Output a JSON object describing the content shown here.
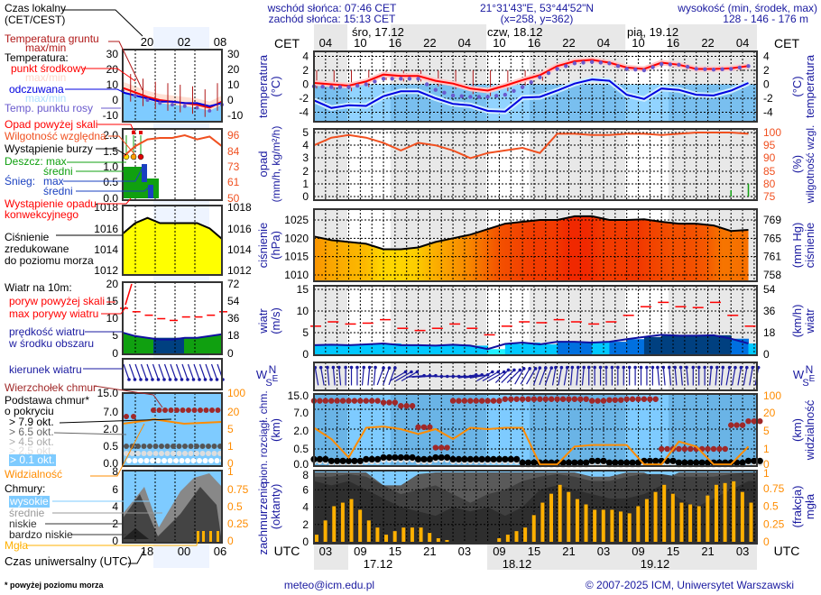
{
  "header": {
    "sunrise": "wschód słońca: 07:46 CET",
    "sunset": "zachód słońca: 15:13 CET",
    "coords": "21°31'43\"E, 53°44'52\"N",
    "grid": "(x=258,  y=362)",
    "elevation_title": "wysokość (min, środek, max)",
    "elevation_values": "128 - 146 - 176 m"
  },
  "footer": {
    "email": "meteo@icm.edu.pl",
    "copyright": "© 2007-2025 ICM, Uniwersytet Warszawski",
    "note": "* powyżej poziomu morza"
  },
  "legend": {
    "local_time": "Czas lokalny",
    "local_time_zone": "(CET/CEST)",
    "ground_temp": "Temperatura gruntu",
    "ground_temp_mm": "max/min",
    "temperature": "Temperatura:",
    "temp_mid": "punkt środkowy",
    "temp_mid_mm": "max/min",
    "feels": "odczuwana",
    "feels_mm": "max/min",
    "dew": "Temp. punktu rosy",
    "precip_over": "Opad powyżej skali",
    "humidity": "Wilgotność względna",
    "storm": "Wystąpienie burzy",
    "rain": "Deszcz: max",
    "rain_avg": "średni",
    "snow": "Śnieg:",
    "snow_max": "max",
    "snow_avg": "średni",
    "convective": "Wystąpienie opadu",
    "convective2": "konwekcyjnego",
    "pressure1": "Ciśnienie",
    "pressure2": "zredukowane",
    "pressure3": "do poziomu morza",
    "wind10": "Wiatr na 10m:",
    "gust_over": "poryw powyżej skali",
    "gust_max": "max porywy wiatru",
    "wind_speed1": "prędkość wiatru",
    "wind_speed2": "w środku obszaru",
    "wind_dir": "kierunek wiatru",
    "cloud_top": "Wierzchołek chmur",
    "cloud_base1": "Podstawa chmur*",
    "cloud_base2": "o pokryciu",
    "okt79": "> 7.9 okt.",
    "okt65": "> 6.5 okt.",
    "okt45": "> 4.5 okt.",
    "okt25": "> 2.5 okt.",
    "okt01": "> 0.1 okt.",
    "visibility": "Widzialność",
    "clouds": "Chmury:",
    "high": "wysokie",
    "medium": "średnie",
    "low": "niskie",
    "very_low": "bardzo niskie",
    "fog": "Mgła",
    "utc": "Czas uniwersalny (UTC)",
    "mini_top_ticks": [
      "20",
      "02",
      "08"
    ],
    "mini_bottom_ticks": [
      "18",
      "00",
      "06"
    ],
    "mini_series": {
      "temp": [
        8,
        5,
        2,
        0,
        -1,
        -2,
        -3,
        -5,
        -1
      ],
      "feels": [
        5,
        3,
        1,
        -1,
        -1,
        -2,
        -2,
        -4,
        -2
      ],
      "humidity": [
        80,
        88,
        93,
        94,
        94,
        96,
        93,
        95,
        88
      ],
      "pressure": [
        1015.5,
        1016.5,
        1017,
        1016.5,
        1016.5,
        1016.5,
        1016.5,
        1016,
        1015
      ],
      "wind": [
        6,
        5,
        4.5,
        4,
        4,
        4.5,
        4.5,
        5,
        5.5
      ],
      "gust": [
        13,
        12,
        11,
        10,
        9.5,
        10.5,
        10.5,
        11,
        12
      ]
    }
  },
  "axes": {
    "cet": "CET",
    "utc": "UTC",
    "days": [
      "śro, 17.12",
      "czw, 18.12",
      "pią, 19.12"
    ],
    "cet_ticks": [
      "04",
      "10",
      "16",
      "22",
      "04",
      "10",
      "16",
      "22",
      "04",
      "10",
      "16",
      "22",
      "04"
    ],
    "utc_ticks": [
      "03",
      "09",
      "15",
      "21",
      "03",
      "09",
      "15",
      "21",
      "03",
      "09",
      "15",
      "21",
      "03"
    ],
    "utc_dates": [
      "17.12",
      "18.12",
      "19.12"
    ],
    "compass": [
      "W",
      "S",
      "N",
      "E"
    ],
    "temperature": {
      "left": [
        "temperatura",
        "(°C)"
      ],
      "right": [
        "(°C)",
        "temperatura"
      ],
      "ticks": [
        "4",
        "2",
        "0",
        "-2",
        "-4"
      ],
      "mini_ticks": [
        "30",
        "20",
        "10",
        "0",
        "-10"
      ]
    },
    "precip": {
      "left": [
        "opad",
        "(mm/h, kg/m²/h)"
      ],
      "ticks": [
        "5",
        "4",
        "3",
        "2",
        "1",
        "0"
      ],
      "mini_ticks": [
        "2.0",
        "1.5",
        "1.0",
        "0.5",
        "0.0"
      ]
    },
    "humidity": {
      "right": [
        "(%)",
        "wilgotność wzgl."
      ],
      "ticks": [
        "100",
        "95",
        "90",
        "85",
        "80",
        "75"
      ],
      "mini_ticks": [
        "96",
        "84",
        "73",
        "61",
        "50"
      ]
    },
    "pressure": {
      "left": [
        "ciśnienie",
        "(hPa)"
      ],
      "right": [
        "(mm Hg)",
        "ciśnienie"
      ],
      "ticks": [
        "1025",
        "1020",
        "1015",
        "1010"
      ],
      "mmhg_ticks": [
        "769",
        "765",
        "761",
        "758"
      ],
      "mini_ticks": [
        "1018",
        "1016",
        "1014",
        "1012"
      ]
    },
    "wind": {
      "left": [
        "wiatr",
        "(m/s)"
      ],
      "right": [
        "(km/h)",
        "wiatr"
      ],
      "ticks": [
        "15",
        "10",
        "5",
        "0"
      ],
      "kmh_ticks": [
        "54",
        "36",
        "18",
        "0"
      ],
      "mini_ticks": [
        "20",
        "15",
        "10",
        "5",
        "0"
      ],
      "mini_kmh": [
        "72",
        "54",
        "36",
        "18",
        "0"
      ]
    },
    "cloud_extent": {
      "left": [
        "pion. rozciągł. chm.",
        "(km)"
      ],
      "ticks": [
        "15.0",
        "7.0",
        "2.0",
        "0.5",
        "0.0"
      ]
    },
    "visibility": {
      "right": [
        "(km)",
        "widzialność"
      ],
      "ticks": [
        "100",
        "20",
        "5",
        "1",
        "0"
      ]
    },
    "cloud_cover": {
      "left": [
        "zachmurzenie",
        "(oktanty)"
      ],
      "ticks": [
        "8",
        "6",
        "4",
        "2",
        "0"
      ]
    },
    "fog": {
      "right": [
        "(frakcja)",
        "mgła"
      ],
      "ticks": [
        "1",
        "0.75",
        "0.5",
        "0.25",
        "0"
      ]
    }
  },
  "colors": {
    "temperature": "#ff0000",
    "feels_like": "#0000e0",
    "dew_point": "#6a5acd",
    "humidity": "#f05020",
    "pressure_low": "#ffe000",
    "pressure_high": "#f02800",
    "gust": "#ff0000",
    "wind": "#00c8ff",
    "cloud_top": "#a02828",
    "visibility": "#ff8c00",
    "fog": "#ffb000",
    "axis_label": "#1a1aa0"
  },
  "chart_data": {
    "type": "line",
    "times_cet": [
      "17.12 02:00",
      "17.12 05:00",
      "17.12 08:00",
      "17.12 11:00",
      "17.12 14:00",
      "17.12 17:00",
      "17.12 20:00",
      "17.12 23:00",
      "18.12 02:00",
      "18.12 05:00",
      "18.12 08:00",
      "18.12 11:00",
      "18.12 14:00",
      "18.12 17:00",
      "18.12 20:00",
      "18.12 23:00",
      "19.12 02:00",
      "19.12 05:00",
      "19.12 08:00",
      "19.12 11:00",
      "19.12 14:00",
      "19.12 17:00",
      "19.12 20:00",
      "19.12 23:00",
      "20.12 02:00",
      "20.12 05:00"
    ],
    "temperature_c": [
      0.2,
      0,
      -0.2,
      0.4,
      1.4,
      1.2,
      1.2,
      0.5,
      0.1,
      -0.6,
      -0.9,
      -0.2,
      0.6,
      1.3,
      2.6,
      3.3,
      3.5,
      3.1,
      2.4,
      2.2,
      3.1,
      2.8,
      2.2,
      2.2,
      2.3,
      2.6
    ],
    "feels_like_c": [
      -2.3,
      -3.4,
      -3.0,
      -3.1,
      -1.7,
      -1.0,
      -1.0,
      -2.0,
      -2.8,
      -3.0,
      -3.8,
      -3.9,
      -1.9,
      -1.8,
      -0.9,
      0.1,
      0.7,
      0.5,
      -1.5,
      -2.1,
      -0.6,
      -0.8,
      -1.5,
      -1.6,
      -0.9,
      0.2
    ],
    "dew_point_c": [
      -0.3,
      -0.4,
      -0.4,
      0.0,
      0.8,
      0.8,
      0.8,
      -0.8,
      -1.6,
      -1.8,
      -1.8,
      -1.5,
      -0.4,
      1.0,
      2.2,
      3.0,
      3.2,
      3.0,
      2.2,
      2.0,
      2.9,
      2.8,
      2.2,
      2.1,
      2.2,
      2.6
    ],
    "humidity_pct": [
      95,
      98,
      99,
      98,
      96,
      93,
      96,
      95,
      93,
      90,
      92,
      93,
      94,
      92,
      99.5,
      99.5,
      99,
      99,
      99.5,
      99.5,
      99,
      99.5,
      100,
      100,
      100,
      99.5
    ],
    "precip_mm_h": [
      0,
      0,
      0,
      0,
      0,
      0,
      0,
      0,
      0,
      0,
      0,
      0,
      0,
      0,
      0,
      0,
      0,
      0,
      0,
      0,
      0,
      0,
      0,
      0,
      0.5,
      1.0
    ],
    "pressure_hpa": [
      1020.5,
      1019.5,
      1019,
      1018.5,
      1017,
      1017,
      1017.5,
      1019,
      1020,
      1021,
      1022.5,
      1024,
      1024.5,
      1025,
      1025,
      1026,
      1026,
      1025,
      1025,
      1025.2,
      1024.5,
      1024,
      1024,
      1023.5,
      1022,
      1022.3
    ],
    "wind_ms": [
      2.1,
      2.2,
      2.1,
      2.3,
      2.5,
      2.1,
      2.1,
      2.0,
      2.2,
      2.0,
      1.2,
      2.4,
      2.7,
      2.3,
      2.9,
      2.9,
      2.7,
      2.9,
      3.5,
      4.0,
      4.5,
      4.3,
      4.3,
      4.4,
      3.6,
      2.5
    ],
    "gust_ms": [
      6.5,
      7.5,
      7,
      7.2,
      8,
      6,
      5.5,
      6,
      7,
      6,
      4.5,
      6.5,
      7.5,
      7.3,
      8,
      7.5,
      7,
      7.5,
      9,
      11,
      12,
      11,
      10.8,
      12,
      9,
      6.5
    ],
    "wind_dir_deg": [
      170,
      175,
      180,
      185,
      200,
      240,
      265,
      270,
      270,
      260,
      240,
      225,
      210,
      200,
      190,
      185,
      180,
      180,
      180,
      180,
      175,
      175,
      180,
      185,
      190,
      190
    ],
    "cloud_top_km": [
      12,
      12,
      12,
      12,
      11,
      9,
      2.5,
      0.6,
      12,
      12,
      12,
      13,
      13,
      13,
      13,
      13,
      12,
      12.5,
      13,
      13,
      0.5,
      0.5,
      0.5,
      0.5,
      3,
      4
    ],
    "cloud_base_km": [
      0.2,
      0.15,
      0.15,
      0.2,
      0.25,
      0.25,
      0.2,
      0.25,
      0.2,
      0.2,
      0.2,
      0.2,
      0.1,
      0.1,
      0.1,
      0.1,
      0.15,
      0.1,
      0.1,
      0.15,
      0.15,
      0.1,
      0.1,
      0.1,
      0.1,
      0.15
    ],
    "visibility_km": [
      6,
      3,
      0.5,
      6,
      7,
      5,
      4,
      5,
      3,
      6,
      5,
      6,
      6,
      0.1,
      0.1,
      1.5,
      1.8,
      1.8,
      1.8,
      0.1,
      0.1,
      2.5,
      1.5,
      0.1,
      0.1,
      1.5
    ],
    "fog_fraction": [
      0.1,
      0.5,
      0.6,
      0.3,
      0.1,
      0.2,
      0.2,
      0.05,
      0,
      0,
      0,
      0.1,
      0.2,
      0.55,
      0.8,
      0.6,
      0.45,
      0.45,
      0.4,
      0.6,
      0.8,
      0.55,
      0.5,
      0.8,
      0.85,
      0.55
    ],
    "cloud_very_low_okt": [
      7,
      6.5,
      7,
      6,
      5,
      4,
      3.5,
      3,
      4,
      3.5,
      4,
      3,
      4,
      6,
      6.5,
      6,
      5.5,
      5,
      5,
      5.5,
      6.5,
      5,
      4,
      5,
      6,
      7
    ],
    "cloud_low_okt": [
      7.5,
      7.5,
      7.8,
      7.5,
      6.5,
      5.5,
      6,
      6.5,
      5.5,
      4.5,
      5.5,
      6,
      7,
      7.5,
      7.8,
      7.5,
      7,
      7,
      7.5,
      7.8,
      7.8,
      7.5,
      7.5,
      7.5,
      7.8,
      8
    ],
    "cloud_medium_okt": [
      8,
      8,
      8,
      8,
      7.5,
      6.5,
      7.8,
      8,
      8,
      8,
      8,
      8,
      8,
      8,
      8,
      8,
      7.5,
      7.5,
      8,
      8,
      8,
      8,
      8,
      8,
      8,
      8
    ],
    "sunrise_cet": "07:46",
    "sunset_cet": "15:13"
  }
}
